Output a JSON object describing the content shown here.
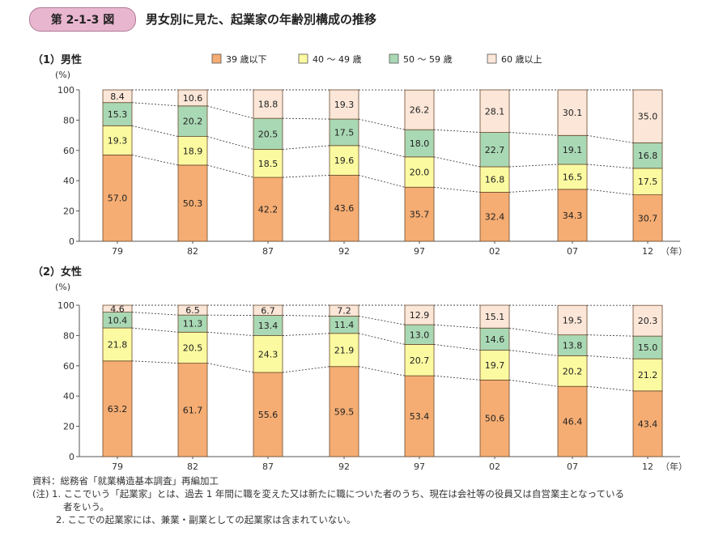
{
  "figure": {
    "badge": "第 2-1-3 図",
    "title": "男女別に見た、起業家の年齢別構成の推移"
  },
  "legend": [
    {
      "label": "39 歳以下",
      "color": "#f5ad73"
    },
    {
      "label": "40 〜 49 歳",
      "color": "#fbfaa0"
    },
    {
      "label": "50 〜 59 歳",
      "color": "#a9d8b4"
    },
    {
      "label": "60 歳以上",
      "color": "#fbe6d8"
    }
  ],
  "chart_data": [
    {
      "type": "bar",
      "stacked": true,
      "title": "（1）男性",
      "ylabel": "(%)",
      "xunit": "（年）",
      "ylim": [
        0,
        100
      ],
      "yticks": [
        "0",
        "20",
        "40",
        "60",
        "80",
        "100"
      ],
      "categories": [
        "79",
        "82",
        "87",
        "92",
        "97",
        "02",
        "07",
        "12"
      ],
      "series": [
        {
          "name": "39 歳以下",
          "values": [
            57.0,
            50.3,
            42.2,
            43.6,
            35.7,
            32.4,
            34.3,
            30.7
          ],
          "labels": [
            "57.0",
            "50.3",
            "42.2",
            "43.6",
            "35.7",
            "32.4",
            "34.3",
            "30.7"
          ]
        },
        {
          "name": "40 〜 49 歳",
          "values": [
            19.3,
            18.9,
            18.5,
            19.6,
            20.0,
            16.8,
            16.5,
            17.5
          ],
          "labels": [
            "19.3",
            "18.9",
            "18.5",
            "19.6",
            "20.0",
            "16.8",
            "16.5",
            "17.5"
          ]
        },
        {
          "name": "50 〜 59 歳",
          "values": [
            15.3,
            20.2,
            20.5,
            17.5,
            18.0,
            22.7,
            19.1,
            16.8
          ],
          "labels": [
            "15.3",
            "20.2",
            "20.5",
            "17.5",
            "18.0",
            "22.7",
            "19.1",
            "16.8"
          ]
        },
        {
          "name": "60 歳以上",
          "values": [
            8.4,
            10.6,
            18.8,
            19.3,
            26.2,
            28.1,
            30.1,
            35.0
          ],
          "labels": [
            "8.4",
            "10.6",
            "18.8",
            "19.3",
            "26.2",
            "28.1",
            "30.1",
            "35.0"
          ]
        }
      ]
    },
    {
      "type": "bar",
      "stacked": true,
      "title": "（2）女性",
      "ylabel": "(%)",
      "xunit": "（年）",
      "ylim": [
        0,
        100
      ],
      "yticks": [
        "0",
        "20",
        "40",
        "60",
        "80",
        "100"
      ],
      "categories": [
        "79",
        "82",
        "87",
        "92",
        "97",
        "02",
        "07",
        "12"
      ],
      "series": [
        {
          "name": "39 歳以下",
          "values": [
            63.2,
            61.7,
            55.6,
            59.5,
            53.4,
            50.6,
            46.4,
            43.4
          ],
          "labels": [
            "63.2",
            "61.7",
            "55.6",
            "59.5",
            "53.4",
            "50.6",
            "46.4",
            "43.4"
          ]
        },
        {
          "name": "40 〜 49 歳",
          "values": [
            21.8,
            20.5,
            24.3,
            21.9,
            20.7,
            19.7,
            20.2,
            21.2
          ],
          "labels": [
            "21.8",
            "20.5",
            "24.3",
            "21.9",
            "20.7",
            "19.7",
            "20.2",
            "21.2"
          ]
        },
        {
          "name": "50 〜 59 歳",
          "values": [
            10.4,
            11.3,
            13.4,
            11.4,
            13.0,
            14.6,
            13.8,
            15.0
          ],
          "labels": [
            "10.4",
            "11.3",
            "13.4",
            "11.4",
            "13.0",
            "14.6",
            "13.8",
            "15.0"
          ]
        },
        {
          "name": "60 歳以上",
          "values": [
            4.6,
            6.5,
            6.7,
            7.2,
            12.9,
            15.1,
            19.5,
            20.3
          ],
          "labels": [
            "4.6",
            "6.5",
            "6.7",
            "7.2",
            "12.9",
            "15.1",
            "19.5",
            "20.3"
          ]
        }
      ]
    }
  ],
  "notes": {
    "source": "資料：総務省「就業構造基本調査」再編加工",
    "note1": "(注) 1. ここでいう「起業家」とは、過去 1 年間に職を変えた又は新たに職についた者のうち、現在は会社等の役員又は自営業主となっている",
    "note1b": "者をいう。",
    "note2": "2. ここでの起業家には、兼業・副業としての起業家は含まれていない。"
  }
}
